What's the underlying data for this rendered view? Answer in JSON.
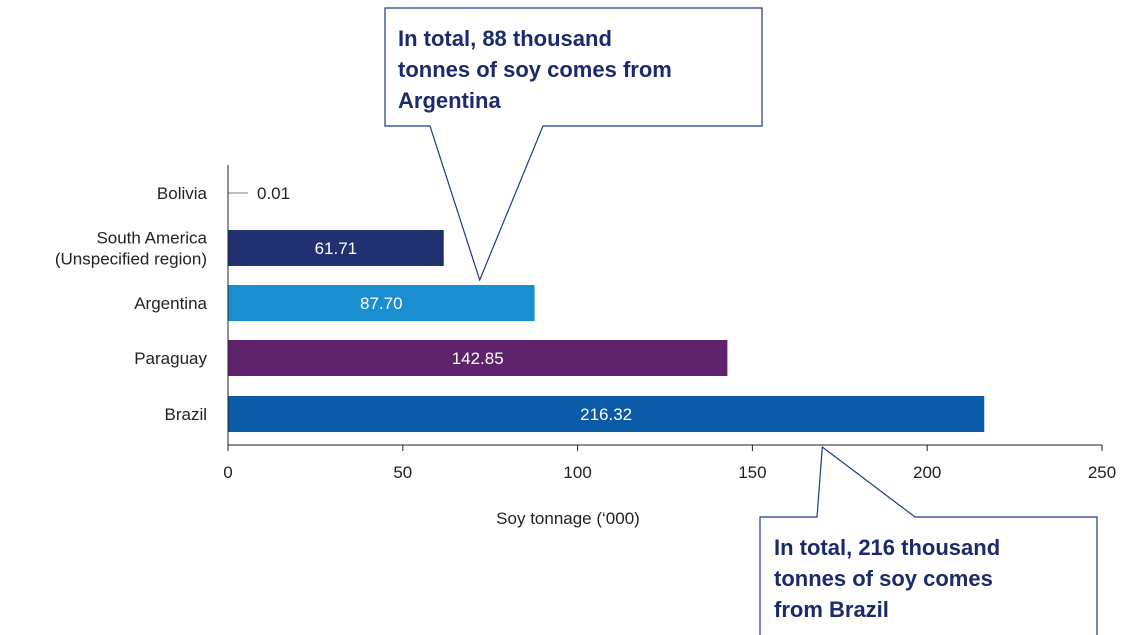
{
  "chart_data": {
    "type": "bar",
    "orientation": "horizontal",
    "categories": [
      "Bolivia",
      "South America\n(Unspecified region)",
      "Argentina",
      "Paraguay",
      "Brazil"
    ],
    "values": [
      0.01,
      61.71,
      87.7,
      142.85,
      216.32
    ],
    "value_labels": [
      "0.01",
      "61.71",
      "87.70",
      "142.85",
      "216.32"
    ],
    "colors": [
      "#bdbdbd",
      "#1f3170",
      "#1a8ed0",
      "#5f236b",
      "#0b5aa8"
    ],
    "xlabel": "Soy tonnage (‘000)",
    "xlim": [
      0,
      250
    ],
    "xticks": [
      0,
      50,
      100,
      150,
      200,
      250
    ],
    "grid": false,
    "legend": "none",
    "annotations": [
      {
        "id": "argentina",
        "lines": [
          "In total, 88 thousand",
          "tonnes of soy comes from",
          "Argentina"
        ],
        "points_to": "Argentina"
      },
      {
        "id": "brazil",
        "lines": [
          "In total, 216 thousand",
          "tonnes of soy comes",
          "from Brazil"
        ],
        "points_to": "Brazil"
      }
    ]
  },
  "colors": {
    "callout_border": "#1b3a8c",
    "callout_text": "#1b2a6b",
    "axis": "#222222"
  }
}
